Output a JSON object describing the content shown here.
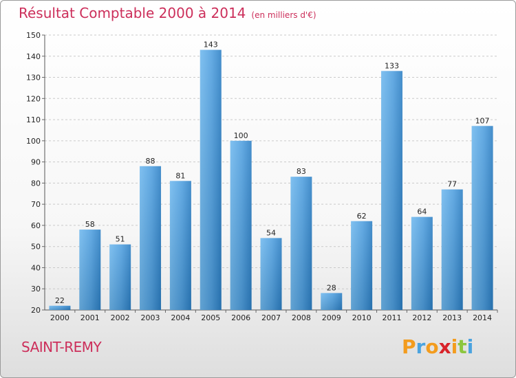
{
  "title": "Résultat Comptable 2000 à 2014",
  "unit": "(en milliers d'€)",
  "commune": "SAINT-REMY",
  "logo": {
    "letters": [
      "P",
      "r",
      "o",
      "x",
      "i",
      "t",
      "i"
    ],
    "colors": [
      "#f39c1e",
      "#4aa3df",
      "#f39c1e",
      "#d8232a",
      "#f39c1e",
      "#8cc63f",
      "#4aa3df"
    ]
  },
  "colors": {
    "bar": "#4f9fdf",
    "bar_light": "#6fb8ee",
    "bar_dark": "#2c7fc4"
  },
  "chart_data": {
    "type": "bar",
    "categories": [
      "2000",
      "2001",
      "2002",
      "2003",
      "2004",
      "2005",
      "2006",
      "2007",
      "2008",
      "2009",
      "2010",
      "2011",
      "2012",
      "2013",
      "2014"
    ],
    "values": [
      22,
      58,
      51,
      88,
      81,
      143,
      100,
      54,
      83,
      28,
      62,
      133,
      64,
      77,
      107
    ],
    "yticks": [
      20,
      30,
      40,
      50,
      60,
      70,
      80,
      90,
      100,
      110,
      120,
      130,
      140,
      150
    ],
    "ylim": [
      20,
      150
    ],
    "grid": true
  }
}
